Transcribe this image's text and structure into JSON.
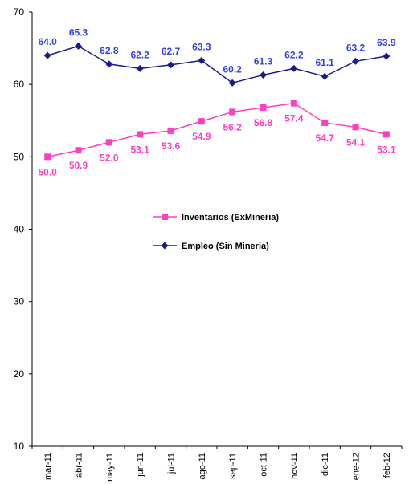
{
  "chart_data": {
    "type": "line",
    "categories": [
      "mar-11",
      "abr-11",
      "may-11",
      "jun-11",
      "jul-11",
      "ago-11",
      "sep-11",
      "oct-11",
      "nov-11",
      "dic-11",
      "ene-12",
      "feb-12"
    ],
    "ylim": [
      10,
      70
    ],
    "yticks": [
      "10",
      "20",
      "30",
      "40",
      "50",
      "60",
      "70"
    ],
    "grid": false,
    "legend_position": "center",
    "series": [
      {
        "name": "Inventarios (ExMineria)",
        "color": "#ff3fbf",
        "marker": "square",
        "values": [
          50.0,
          50.9,
          52.0,
          53.1,
          53.6,
          54.9,
          56.2,
          56.8,
          57.4,
          54.7,
          54.1,
          53.1
        ],
        "labels": [
          "50.0",
          "50.9",
          "52.0",
          "53.1",
          "53.6",
          "54.9",
          "56.2",
          "56.8",
          "57.4",
          "54.7",
          "54.1",
          "53.1"
        ]
      },
      {
        "name": "Empleo (Sin Mineria)",
        "color": "#1a1a8c",
        "label_color": "#3344dd",
        "marker": "diamond",
        "values": [
          64.0,
          65.3,
          62.8,
          62.2,
          62.7,
          63.3,
          60.2,
          61.3,
          62.2,
          61.1,
          63.2,
          63.9
        ],
        "labels": [
          "64.0",
          "65.3",
          "62.8",
          "62.2",
          "62.7",
          "63.3",
          "60.2",
          "61.3",
          "62.2",
          "61.1",
          "63.2",
          "63.9"
        ]
      }
    ]
  }
}
